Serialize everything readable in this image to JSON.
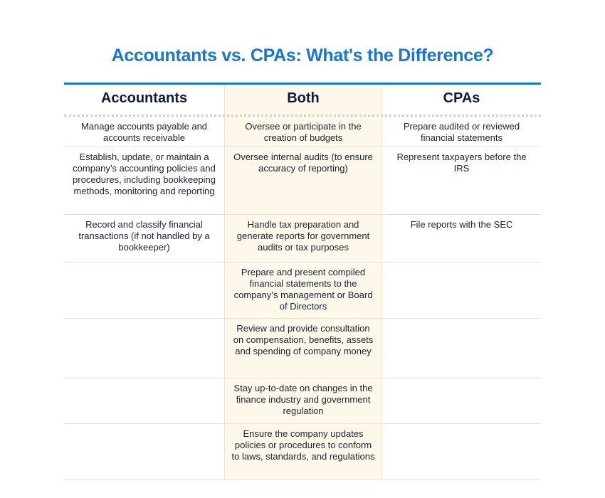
{
  "title": "Accountants vs. CPAs: What's the Difference?",
  "headers": [
    "Accountants",
    "Both",
    "CPAs"
  ],
  "rows": [
    [
      "Manage accounts payable and accounts receivable",
      "Oversee or participate in the creation of budgets",
      "Prepare audited or reviewed financial statements"
    ],
    [
      "Establish, update, or maintain a company’s accounting policies and procedures, including bookkeeping methods, monitoring and reporting",
      "Oversee internal audits (to ensure accuracy of reporting)",
      "Represent taxpayers before the IRS"
    ],
    [
      "Record and classify financial transactions (if not handled by a bookkeeper)",
      "Handle tax preparation and generate reports for government audits or tax purposes",
      "File reports with the SEC"
    ],
    [
      "",
      "Prepare and present compiled financial statements to the company’s management or Board of Directors",
      ""
    ],
    [
      "",
      "Review and provide consultation on compensation, benefits, assets and spending of company money",
      ""
    ],
    [
      "",
      "Stay up-to-date on changes in the finance industry and government regulation",
      ""
    ],
    [
      "",
      "Ensure the company updates policies or procedures to conform to laws, standards, and regulations",
      ""
    ]
  ],
  "colors": {
    "title": "#1877d2",
    "both_column": "#fdf8e9",
    "header_text": "#0e1b3d"
  }
}
